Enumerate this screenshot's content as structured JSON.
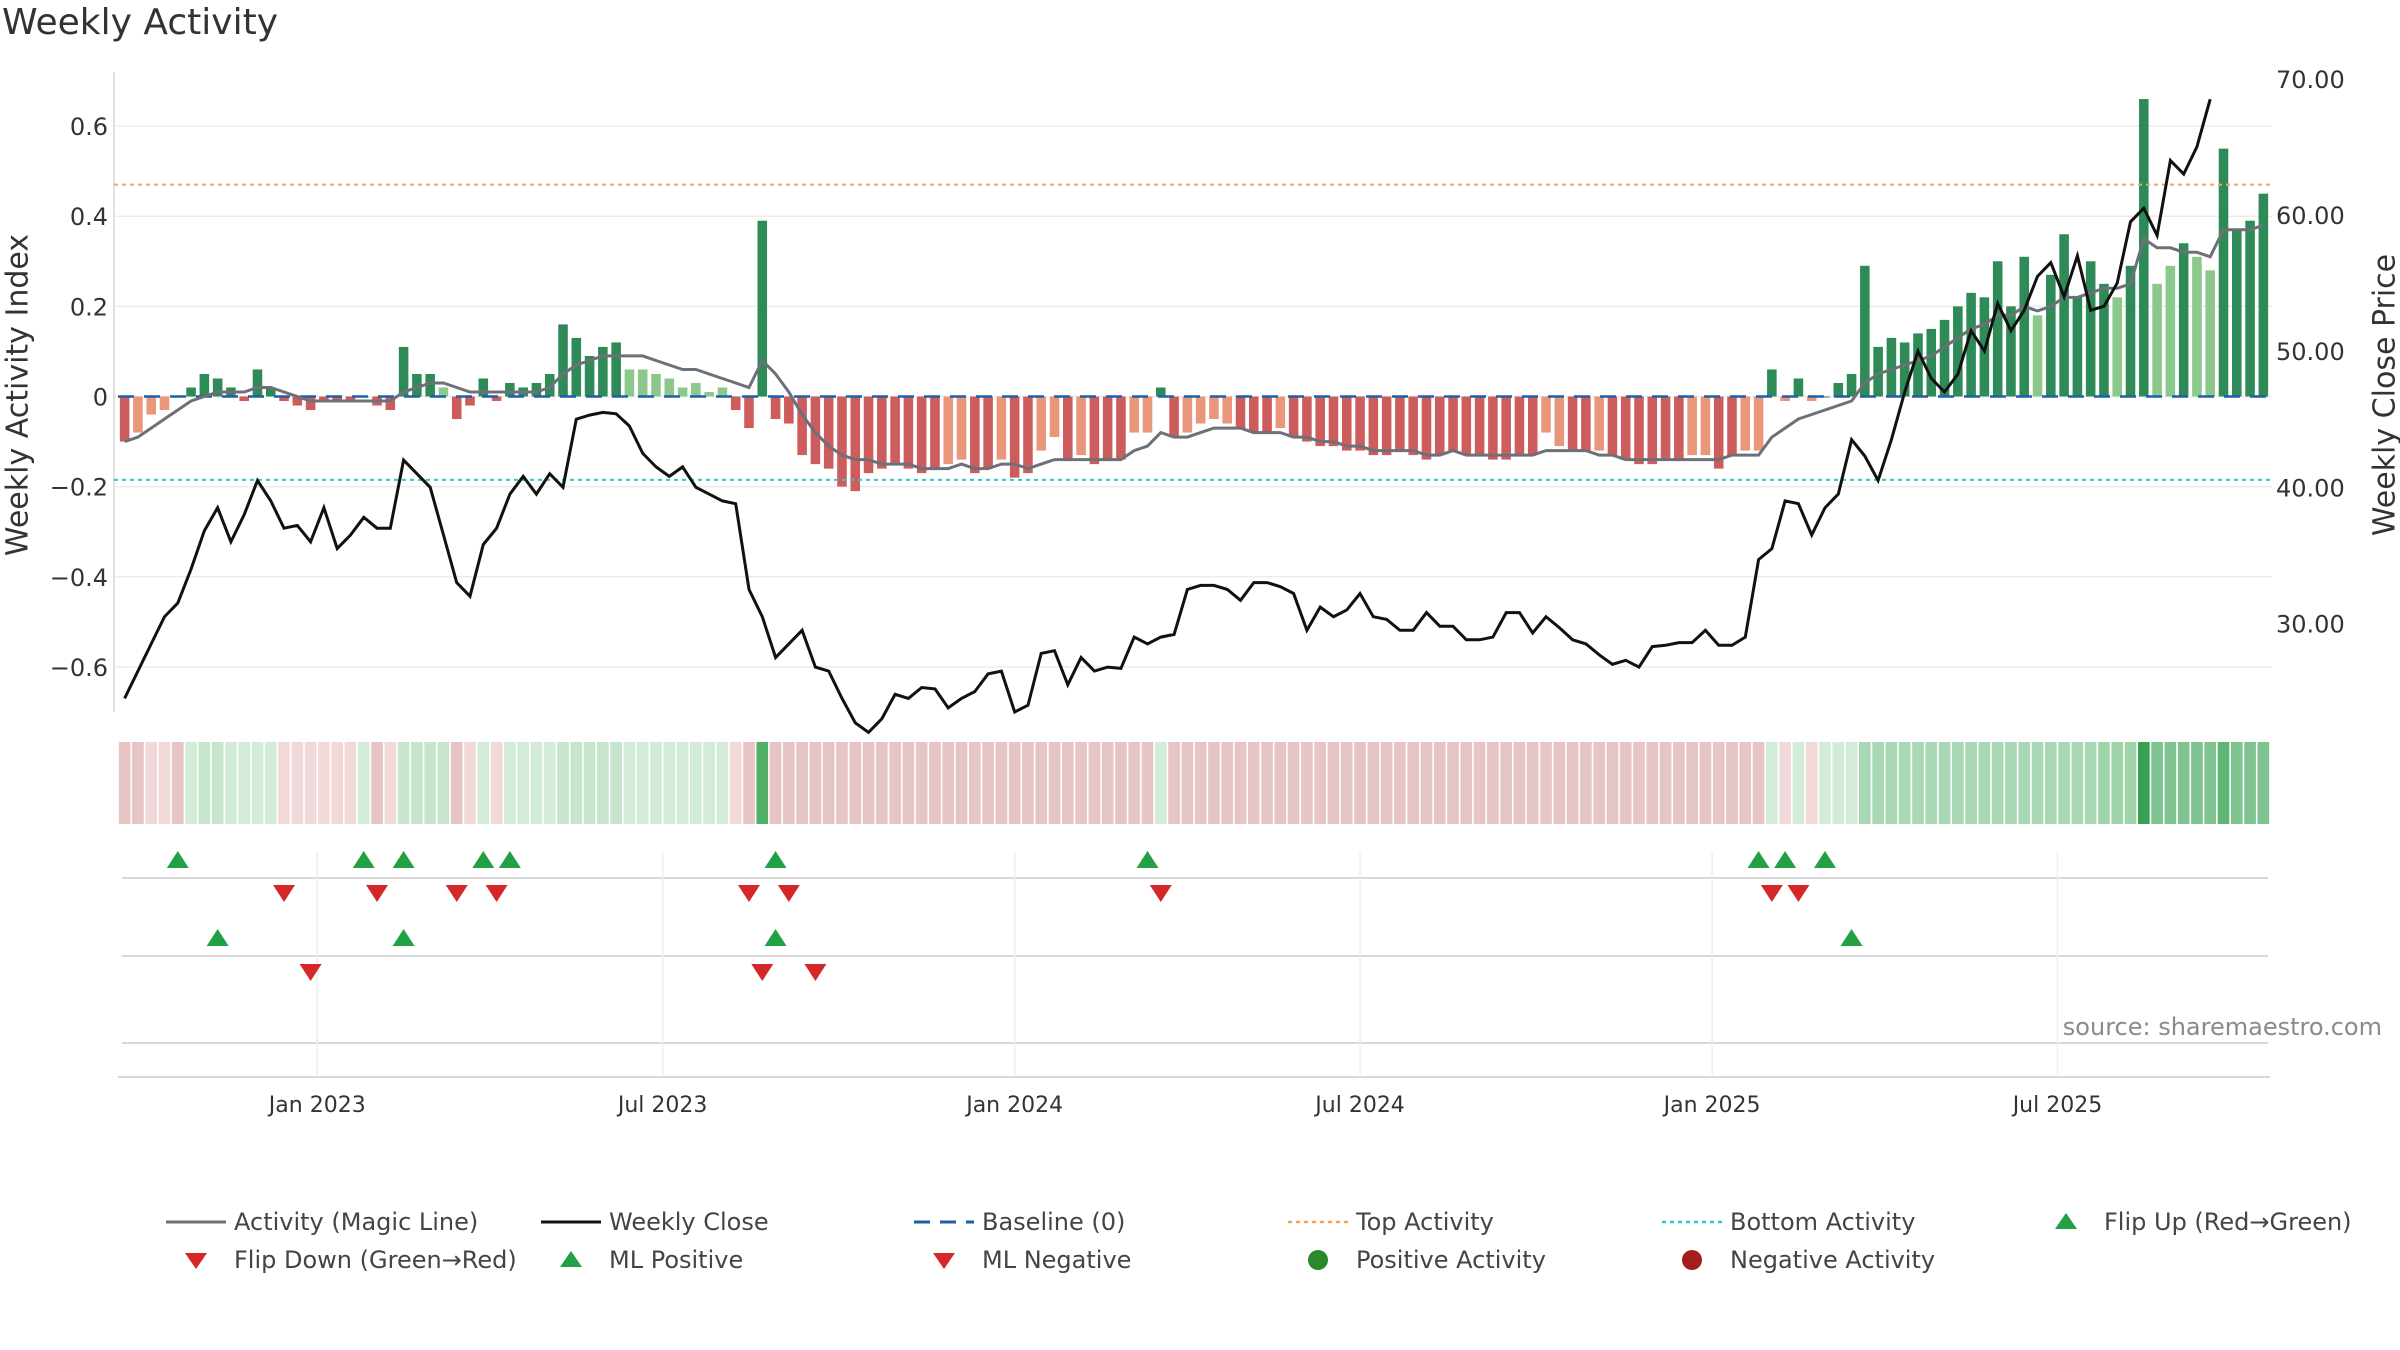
{
  "chart_data": {
    "type": "bar",
    "title": "Weekly Activity",
    "ylabel": "Weekly Activity Index",
    "y2label": "Weekly Close Price",
    "ylim": [
      -0.7,
      0.72
    ],
    "y2lim": [
      23.5,
      70.5
    ],
    "yticks": [
      -0.6,
      -0.4,
      -0.2,
      0,
      0.2,
      0.4,
      0.6
    ],
    "ytick_labels": [
      "−0.6",
      "−0.4",
      "−0.2",
      "0",
      "0.2",
      "0.4",
      "0.6"
    ],
    "y2ticks": [
      30,
      40,
      50,
      60,
      70
    ],
    "y2tick_labels": [
      "30.00",
      "40.00",
      "50.00",
      "60.00",
      "70.00"
    ],
    "xlabels": [
      "Jan 2023",
      "Jul 2023",
      "Jan 2024",
      "Jul 2024",
      "Jan 2025",
      "Jul 2025"
    ],
    "xlabel_weeks": [
      15,
      41,
      67.5,
      93.5,
      120,
      146
    ],
    "top_activity": 0.47,
    "bottom_activity": -0.185,
    "baseline": 0,
    "activity": [
      -0.1,
      -0.08,
      -0.04,
      -0.03,
      0,
      0.02,
      0.05,
      0.04,
      0.02,
      -0.01,
      0.06,
      0.02,
      -0.01,
      -0.02,
      -0.03,
      -0.01,
      -0.01,
      -0.01,
      0,
      -0.02,
      -0.03,
      0.11,
      0.05,
      0.05,
      0.02,
      -0.05,
      -0.02,
      0.04,
      -0.01,
      0.03,
      0.02,
      0.03,
      0.05,
      0.16,
      0.13,
      0.09,
      0.11,
      0.12,
      0.06,
      0.06,
      0.05,
      0.04,
      0.02,
      0.03,
      0.01,
      0.02,
      -0.03,
      -0.07,
      0.39,
      -0.05,
      -0.06,
      -0.13,
      -0.15,
      -0.16,
      -0.2,
      -0.21,
      -0.17,
      -0.16,
      -0.15,
      -0.16,
      -0.17,
      -0.16,
      -0.15,
      -0.14,
      -0.17,
      -0.16,
      -0.14,
      -0.18,
      -0.17,
      -0.12,
      -0.09,
      -0.14,
      -0.13,
      -0.15,
      -0.14,
      -0.14,
      -0.08,
      -0.08,
      0.02,
      -0.09,
      -0.08,
      -0.06,
      -0.05,
      -0.06,
      -0.07,
      -0.08,
      -0.08,
      -0.07,
      -0.09,
      -0.1,
      -0.11,
      -0.11,
      -0.12,
      -0.12,
      -0.13,
      -0.13,
      -0.12,
      -0.13,
      -0.14,
      -0.13,
      -0.12,
      -0.13,
      -0.13,
      -0.14,
      -0.14,
      -0.13,
      -0.13,
      -0.08,
      -0.11,
      -0.12,
      -0.12,
      -0.12,
      -0.13,
      -0.14,
      -0.15,
      -0.15,
      -0.14,
      -0.14,
      -0.13,
      -0.13,
      -0.16,
      -0.13,
      -0.12,
      -0.12,
      0.06,
      -0.01,
      0.04,
      -0.01,
      0,
      0.03,
      0.05,
      0.29,
      0.11,
      0.13,
      0.12,
      0.14,
      0.15,
      0.17,
      0.2,
      0.23,
      0.22,
      0.3,
      0.2,
      0.31,
      0.18,
      0.27,
      0.36,
      0.22,
      0.3,
      0.25,
      0.22,
      0.29,
      0.66,
      0.25,
      0.29,
      0.34,
      0.31,
      0.28,
      0.55,
      0.37,
      0.39,
      0.45
    ],
    "magic_line": [
      -0.1,
      -0.09,
      -0.07,
      -0.05,
      -0.03,
      -0.01,
      0,
      0.01,
      0.01,
      0.01,
      0.02,
      0.02,
      0.01,
      0,
      -0.01,
      -0.01,
      -0.01,
      -0.01,
      -0.01,
      -0.01,
      -0.01,
      0.01,
      0.02,
      0.03,
      0.03,
      0.02,
      0.01,
      0.01,
      0.01,
      0.01,
      0.01,
      0.01,
      0.02,
      0.05,
      0.07,
      0.08,
      0.09,
      0.09,
      0.09,
      0.09,
      0.08,
      0.07,
      0.06,
      0.06,
      0.05,
      0.04,
      0.03,
      0.02,
      0.08,
      0.05,
      0.01,
      -0.04,
      -0.08,
      -0.11,
      -0.13,
      -0.14,
      -0.14,
      -0.15,
      -0.15,
      -0.15,
      -0.16,
      -0.16,
      -0.16,
      -0.15,
      -0.16,
      -0.16,
      -0.15,
      -0.15,
      -0.16,
      -0.15,
      -0.14,
      -0.14,
      -0.14,
      -0.14,
      -0.14,
      -0.14,
      -0.12,
      -0.11,
      -0.08,
      -0.09,
      -0.09,
      -0.08,
      -0.07,
      -0.07,
      -0.07,
      -0.08,
      -0.08,
      -0.08,
      -0.09,
      -0.09,
      -0.1,
      -0.1,
      -0.11,
      -0.11,
      -0.12,
      -0.12,
      -0.12,
      -0.12,
      -0.13,
      -0.13,
      -0.12,
      -0.13,
      -0.13,
      -0.13,
      -0.13,
      -0.13,
      -0.13,
      -0.12,
      -0.12,
      -0.12,
      -0.12,
      -0.13,
      -0.13,
      -0.14,
      -0.14,
      -0.14,
      -0.14,
      -0.14,
      -0.14,
      -0.14,
      -0.14,
      -0.13,
      -0.13,
      -0.13,
      -0.09,
      -0.07,
      -0.05,
      -0.04,
      -0.03,
      -0.02,
      -0.01,
      0.03,
      0.05,
      0.06,
      0.07,
      0.08,
      0.09,
      0.11,
      0.13,
      0.15,
      0.16,
      0.18,
      0.18,
      0.2,
      0.19,
      0.2,
      0.22,
      0.22,
      0.23,
      0.24,
      0.24,
      0.25,
      0.35,
      0.33,
      0.33,
      0.32,
      0.32,
      0.31,
      0.37,
      0.37,
      0.37,
      0.38
    ],
    "weekly_close": [
      24.5,
      26.5,
      28.5,
      30.5,
      31.5,
      34,
      36.8,
      38.5,
      36,
      38,
      40.5,
      39,
      37,
      37.2,
      36,
      38.5,
      35.5,
      36.5,
      37.8,
      37,
      37,
      42,
      41,
      40,
      36.5,
      33,
      32,
      35.8,
      37,
      39.5,
      40.8,
      39.5,
      41,
      40,
      45,
      45.3,
      45.5,
      45.4,
      44.5,
      42.5,
      41.5,
      40.8,
      41.5,
      40,
      39.5,
      39,
      38.8,
      32.5,
      30.5,
      27.5,
      28.5,
      29.5,
      26.8,
      26.5,
      24.5,
      22.7,
      22,
      23,
      24.8,
      24.5,
      25.3,
      25.2,
      23.8,
      24.5,
      25,
      26.3,
      26.5,
      23.5,
      24,
      27.8,
      28,
      25.5,
      27.5,
      26.5,
      26.8,
      26.7,
      29,
      28.5,
      29,
      29.2,
      32.5,
      32.8,
      32.8,
      32.5,
      31.7,
      33,
      33,
      32.7,
      32.2,
      29.5,
      31.2,
      30.5,
      31,
      32.2,
      30.5,
      30.3,
      29.5,
      29.5,
      30.8,
      29.8,
      29.8,
      28.8,
      28.8,
      29,
      30.8,
      30.8,
      29.3,
      30.5,
      29.7,
      28.8,
      28.5,
      27.7,
      27,
      27.3,
      26.8,
      28.3,
      28.4,
      28.6,
      28.6,
      29.5,
      28.4,
      28.4,
      29,
      34.7,
      35.5,
      39,
      38.8,
      36.5,
      38.5,
      39.5,
      43.5,
      42.3,
      40.5,
      43.5,
      47,
      50,
      48,
      47,
      48.3,
      51.5,
      50,
      53.5,
      51.5,
      53,
      55.5,
      56.5,
      54,
      57,
      53,
      53.3,
      55,
      59.5,
      60.5,
      58.5,
      64,
      63,
      65,
      68.5
    ],
    "heat_colors": [
      "#e8c5c5",
      "#e8c5c5",
      "#f2d9d9",
      "#f2d9d9",
      "#e8c5c5",
      "#d3ecd8",
      "#c6e5cc",
      "#c6e5cc",
      "#d3ecd8",
      "#d3ecd8",
      "#d3ecd8",
      "#d3ecd8",
      "#f2d9d9",
      "#f2d9d9",
      "#f2d9d9",
      "#f2d9d9",
      "#f2d9d9",
      "#f2d9d9",
      "#d3ecd8",
      "#e8c5c5",
      "#f2d9d9",
      "#c6e5cc",
      "#c6e5cc",
      "#c6e5cc",
      "#c6e5cc",
      "#e8c5c5",
      "#f2d9d9",
      "#d3ecd8",
      "#f2d9d9",
      "#d3ecd8",
      "#d3ecd8",
      "#d3ecd8",
      "#d3ecd8",
      "#c6e5cc",
      "#c6e5cc",
      "#c6e5cc",
      "#c6e5cc",
      "#c6e5cc",
      "#d3ecd8",
      "#d3ecd8",
      "#d3ecd8",
      "#d3ecd8",
      "#d3ecd8",
      "#d3ecd8",
      "#d3ecd8",
      "#d3ecd8",
      "#f2d9d9",
      "#e8c5c5",
      "#51b068",
      "#e8c5c5",
      "#e8c5c5",
      "#e8c5c5",
      "#e8c5c5",
      "#e8c5c5",
      "#e8c5c5",
      "#e8c5c5",
      "#e8c5c5",
      "#e8c5c5",
      "#e8c5c5",
      "#e8c5c5",
      "#e8c5c5",
      "#e8c5c5",
      "#e8c5c5",
      "#e8c5c5",
      "#e8c5c5",
      "#e8c5c5",
      "#e8c5c5",
      "#e8c5c5",
      "#e8c5c5",
      "#e8c5c5",
      "#e8c5c5",
      "#e8c5c5",
      "#e8c5c5",
      "#e8c5c5",
      "#e8c5c5",
      "#e8c5c5",
      "#e8c5c5",
      "#e8c5c5",
      "#d3ecd8",
      "#e8c5c5",
      "#e8c5c5",
      "#e8c5c5",
      "#e8c5c5",
      "#e8c5c5",
      "#e8c5c5",
      "#e8c5c5",
      "#e8c5c5",
      "#e8c5c5",
      "#e8c5c5",
      "#e8c5c5",
      "#e8c5c5",
      "#e8c5c5",
      "#e8c5c5",
      "#e8c5c5",
      "#e8c5c5",
      "#e8c5c5",
      "#e8c5c5",
      "#e8c5c5",
      "#e8c5c5",
      "#e8c5c5",
      "#e8c5c5",
      "#e8c5c5",
      "#e8c5c5",
      "#e8c5c5",
      "#e8c5c5",
      "#e8c5c5",
      "#e8c5c5",
      "#e8c5c5",
      "#e8c5c5",
      "#e8c5c5",
      "#e8c5c5",
      "#e8c5c5",
      "#e8c5c5",
      "#e8c5c5",
      "#e8c5c5",
      "#e8c5c5",
      "#e8c5c5",
      "#e8c5c5",
      "#e8c5c5",
      "#e8c5c5",
      "#e8c5c5",
      "#e8c5c5",
      "#e8c5c5",
      "#e8c5c5",
      "#d3ecd8",
      "#f2d9d9",
      "#d3ecd8",
      "#f2d9d9",
      "#d3ecd8",
      "#d3ecd8",
      "#d3ecd8",
      "#a9d9b4",
      "#a9d9b4",
      "#a9d9b4",
      "#a9d9b4",
      "#a9d9b4",
      "#a9d9b4",
      "#a9d9b4",
      "#a9d9b4",
      "#a9d9b4",
      "#a9d9b4",
      "#a9d9b4",
      "#a9d9b4",
      "#a9d9b4",
      "#a9d9b4",
      "#a9d9b4",
      "#a9d9b4",
      "#a9d9b4",
      "#a9d9b4",
      "#9fd3aa",
      "#9fd3aa",
      "#9fd3aa",
      "#38a052",
      "#7fc490",
      "#7fc490",
      "#7fc490",
      "#7fc490",
      "#7fc490",
      "#5fb574",
      "#7fc490",
      "#7fc490",
      "#7fc490"
    ],
    "flip_up_weeks": [
      4,
      18,
      21,
      27,
      29,
      49,
      77,
      123,
      125,
      128
    ],
    "flip_down_weeks": [
      12,
      19,
      25,
      28,
      47,
      50,
      78,
      124,
      126
    ],
    "ml_positive_weeks": [
      7,
      21,
      49,
      130
    ],
    "ml_negative_weeks": [
      14,
      48,
      52
    ],
    "positive_activity_weeks": [],
    "negative_activity_weeks": [],
    "legend": [
      "Activity (Magic Line)",
      "Weekly Close",
      "Baseline (0)",
      "Top Activity",
      "Bottom Activity",
      "Flip Up (Red→Green)",
      "Flip Down (Green→Red)",
      "ML Positive",
      "ML Negative",
      "Positive Activity",
      "Negative Activity"
    ]
  },
  "source": "source: sharemaestro.com",
  "colors": {
    "bar_green_dark": "#2e8b57",
    "bar_green_light": "#8cc78c",
    "bar_red_dark": "#cd5c5c",
    "bar_red_light": "#e9967a",
    "magic_line": "#6e7079",
    "close_line": "#111111",
    "baseline": "#1f5fa8",
    "top_activity": "#f4a460",
    "bottom_activity": "#2bc8d4",
    "marker_up": "#21a044",
    "marker_down": "#d62728",
    "positive_activity": "#2a8a2a",
    "negative_activity": "#a51c1c"
  }
}
